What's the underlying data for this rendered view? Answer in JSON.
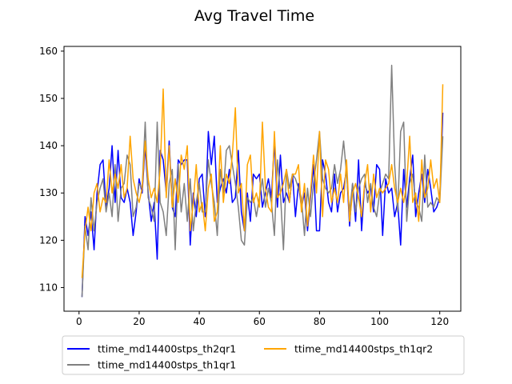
{
  "chart_data": {
    "type": "line",
    "title": "Avg Travel Time",
    "xlabel": "",
    "ylabel": "",
    "xlim": [
      -5,
      127
    ],
    "ylim": [
      105,
      161
    ],
    "xticks": [
      0,
      20,
      40,
      60,
      80,
      100,
      120
    ],
    "yticks": [
      110,
      120,
      130,
      140,
      150,
      160
    ],
    "grid": false,
    "legend_position": "bottom",
    "series": [
      {
        "name": "ttime_md14400stps_th2qr1",
        "color": "#0000ff",
        "x": [
          1,
          2,
          3,
          4,
          5,
          6,
          7,
          8,
          9,
          10,
          11,
          12,
          13,
          14,
          15,
          16,
          17,
          18,
          19,
          20,
          21,
          22,
          23,
          24,
          25,
          26,
          27,
          28,
          29,
          30,
          31,
          32,
          33,
          34,
          35,
          36,
          37,
          38,
          39,
          40,
          41,
          42,
          43,
          44,
          45,
          46,
          47,
          48,
          49,
          50,
          51,
          52,
          53,
          54,
          55,
          56,
          57,
          58,
          59,
          60,
          61,
          62,
          63,
          64,
          65,
          66,
          67,
          68,
          69,
          70,
          71,
          72,
          73,
          74,
          75,
          76,
          77,
          78,
          79,
          80,
          81,
          82,
          83,
          84,
          85,
          86,
          87,
          88,
          89,
          90,
          91,
          92,
          93,
          94,
          95,
          96,
          97,
          98,
          99,
          100,
          101,
          102,
          103,
          104,
          105,
          106,
          107,
          108,
          109,
          110,
          111,
          112,
          113,
          114,
          115,
          116,
          117,
          118,
          119,
          120,
          121
        ],
        "values": [
          108,
          125,
          121,
          126,
          118,
          130,
          136,
          137,
          127,
          131,
          140,
          128,
          139,
          129,
          128,
          131,
          128,
          121,
          126,
          133,
          130,
          140,
          130,
          124,
          128,
          116,
          139,
          137,
          130,
          141,
          127,
          125,
          137,
          136,
          137,
          137,
          119,
          130,
          125,
          133,
          134,
          125,
          143,
          136,
          142,
          128,
          131,
          133,
          130,
          135,
          128,
          129,
          139,
          126,
          122,
          130,
          124,
          134,
          133,
          134,
          127,
          130,
          133,
          129,
          141,
          127,
          138,
          128,
          130,
          128,
          134,
          125,
          132,
          127,
          130,
          122,
          129,
          136,
          122,
          122,
          137,
          134,
          128,
          126,
          134,
          126,
          130,
          131,
          135,
          123,
          132,
          124,
          137,
          122,
          132,
          130,
          131,
          126,
          136,
          135,
          121,
          133,
          130,
          131,
          125,
          128,
          119,
          135,
          127,
          133,
          138,
          125,
          130,
          134,
          128,
          135,
          131,
          126,
          127,
          129,
          147
        ]
      },
      {
        "name": "ttime_md14400stps_th1qr1",
        "color": "#808080",
        "x": [
          1,
          2,
          3,
          4,
          5,
          6,
          7,
          8,
          9,
          10,
          11,
          12,
          13,
          14,
          15,
          16,
          17,
          18,
          19,
          20,
          21,
          22,
          23,
          24,
          25,
          26,
          27,
          28,
          29,
          30,
          31,
          32,
          33,
          34,
          35,
          36,
          37,
          38,
          39,
          40,
          41,
          42,
          43,
          44,
          45,
          46,
          47,
          48,
          49,
          50,
          51,
          52,
          53,
          54,
          55,
          56,
          57,
          58,
          59,
          60,
          61,
          62,
          63,
          64,
          65,
          66,
          67,
          68,
          69,
          70,
          71,
          72,
          73,
          74,
          75,
          76,
          77,
          78,
          79,
          80,
          81,
          82,
          83,
          84,
          85,
          86,
          87,
          88,
          89,
          90,
          91,
          92,
          93,
          94,
          95,
          96,
          97,
          98,
          99,
          100,
          101,
          102,
          103,
          104,
          105,
          106,
          107,
          108,
          109,
          110,
          111,
          112,
          113,
          114,
          115,
          116,
          117,
          118,
          119,
          120,
          121
        ],
        "values": [
          108,
          123,
          118,
          129,
          122,
          128,
          131,
          133,
          126,
          130,
          125,
          136,
          124,
          131,
          132,
          138,
          136,
          125,
          127,
          132,
          131,
          145,
          129,
          127,
          124,
          145,
          128,
          126,
          121,
          132,
          135,
          118,
          136,
          126,
          132,
          124,
          133,
          122,
          128,
          132,
          126,
          126,
          137,
          132,
          128,
          121,
          135,
          130,
          139,
          140,
          136,
          132,
          127,
          120,
          119,
          129,
          128,
          129,
          125,
          129,
          133,
          127,
          131,
          128,
          121,
          137,
          130,
          118,
          135,
          131,
          134,
          133,
          131,
          129,
          121,
          131,
          125,
          132,
          137,
          143,
          133,
          131,
          130,
          131,
          136,
          132,
          135,
          141,
          134,
          126,
          132,
          126,
          131,
          133,
          134,
          128,
          132,
          127,
          125,
          130,
          132,
          134,
          133,
          157,
          136,
          126,
          143,
          145,
          124,
          132,
          134,
          128,
          127,
          124,
          138,
          127,
          128,
          127,
          129,
          128,
          142
        ]
      },
      {
        "name": "ttime_md14400stps_th1qr2",
        "color": "#ffa500",
        "x": [
          1,
          2,
          3,
          4,
          5,
          6,
          7,
          8,
          9,
          10,
          11,
          12,
          13,
          14,
          15,
          16,
          17,
          18,
          19,
          20,
          21,
          22,
          23,
          24,
          25,
          26,
          27,
          28,
          29,
          30,
          31,
          32,
          33,
          34,
          35,
          36,
          37,
          38,
          39,
          40,
          41,
          42,
          43,
          44,
          45,
          46,
          47,
          48,
          49,
          50,
          51,
          52,
          53,
          54,
          55,
          56,
          57,
          58,
          59,
          60,
          61,
          62,
          63,
          64,
          65,
          66,
          67,
          68,
          69,
          70,
          71,
          72,
          73,
          74,
          75,
          76,
          77,
          78,
          79,
          80,
          81,
          82,
          83,
          84,
          85,
          86,
          87,
          88,
          89,
          90,
          91,
          92,
          93,
          94,
          95,
          96,
          97,
          98,
          99,
          100,
          101,
          102,
          103,
          104,
          105,
          106,
          107,
          108,
          109,
          110,
          111,
          112,
          113,
          114,
          115,
          116,
          117,
          118,
          119,
          120,
          121
        ],
        "values": [
          112,
          122,
          127,
          122,
          130,
          132,
          126,
          129,
          128,
          137,
          130,
          134,
          131,
          136,
          129,
          131,
          142,
          133,
          130,
          128,
          131,
          141,
          133,
          129,
          131,
          128,
          135,
          152,
          129,
          140,
          127,
          133,
          128,
          138,
          135,
          140,
          122,
          128,
          136,
          126,
          128,
          122,
          131,
          134,
          124,
          126,
          140,
          128,
          134,
          132,
          138,
          148,
          130,
          132,
          122,
          136,
          138,
          128,
          130,
          127,
          145,
          131,
          127,
          126,
          143,
          129,
          130,
          132,
          135,
          128,
          134,
          134,
          136,
          126,
          132,
          123,
          130,
          138,
          130,
          143,
          125,
          137,
          135,
          128,
          131,
          128,
          134,
          128,
          137,
          124,
          130,
          132,
          129,
          125,
          132,
          136,
          126,
          134,
          129,
          131,
          130,
          131,
          132,
          136,
          131,
          128,
          131,
          128,
          132,
          142,
          128,
          130,
          124,
          137,
          129,
          131,
          137,
          131,
          133,
          128,
          153
        ]
      }
    ]
  }
}
